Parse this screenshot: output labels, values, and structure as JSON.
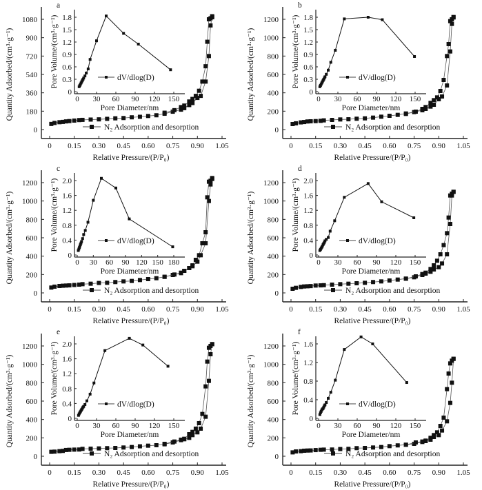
{
  "chart_data": [
    {
      "panel": "a",
      "type": "line",
      "main": {
        "xlabel": "Relative Pressure/(P/P₀)",
        "ylabel": "Quantity Adsorbed/(cm³·g⁻¹)",
        "legend": "N₂ Adsorption and desorption",
        "xticks": [
          0,
          0.15,
          0.3,
          0.45,
          0.6,
          0.75,
          0.9,
          1.05
        ],
        "yticks": [
          0,
          180,
          360,
          540,
          720,
          900,
          1080
        ],
        "adsorption": {
          "p": [
            0.01,
            0.03,
            0.06,
            0.08,
            0.1,
            0.12,
            0.15,
            0.18,
            0.2,
            0.25,
            0.3,
            0.35,
            0.4,
            0.45,
            0.5,
            0.55,
            0.6,
            0.65,
            0.7,
            0.75,
            0.8,
            0.82,
            0.85,
            0.87,
            0.9,
            0.92,
            0.95,
            0.97,
            0.98,
            0.99
          ],
          "q": [
            55,
            65,
            72,
            75,
            80,
            83,
            88,
            93,
            95,
            98,
            100,
            105,
            110,
            113,
            120,
            125,
            133,
            140,
            155,
            175,
            195,
            210,
            240,
            260,
            310,
            330,
            470,
            720,
            1020,
            1100
          ]
        },
        "desorption": {
          "p": [
            0.99,
            0.98,
            0.97,
            0.96,
            0.95,
            0.93,
            0.91,
            0.89,
            0.87,
            0.85,
            0.82,
            0.8,
            0.76,
            0.7
          ],
          "q": [
            1110,
            1090,
            1080,
            860,
            620,
            470,
            380,
            330,
            300,
            275,
            235,
            220,
            190,
            165
          ]
        }
      },
      "inset": {
        "xlabel": "Pore Diameter/nm",
        "ylabel": "Pore Volume/(cm³·g⁻¹)",
        "legend": "dV/dlog(D)",
        "xticks": [
          0,
          30,
          60,
          90,
          120,
          150
        ],
        "yticks": [
          0,
          0.3,
          0.6,
          0.9,
          1.2,
          1.5,
          1.8
        ],
        "d": [
          3,
          4,
          5,
          6,
          7,
          8,
          9,
          10,
          12,
          14,
          17,
          20,
          30,
          45,
          72,
          95,
          145
        ],
        "v": [
          0.12,
          0.15,
          0.18,
          0.21,
          0.24,
          0.27,
          0.3,
          0.33,
          0.38,
          0.45,
          0.55,
          0.78,
          1.23,
          1.83,
          1.41,
          1.15,
          0.53
        ]
      }
    },
    {
      "panel": "b",
      "type": "line",
      "main": {
        "xlabel": "Relative Pressure/(P/P₀)",
        "ylabel": "Quantity Adsorbed/(cm³·g⁻¹)",
        "legend": "N₂ Adsorption and desorption",
        "xticks": [
          0,
          0.15,
          0.3,
          0.45,
          0.6,
          0.75,
          0.9,
          1.05
        ],
        "yticks": [
          0,
          200,
          400,
          600,
          800,
          1000,
          1200
        ],
        "adsorption": {
          "p": [
            0.01,
            0.03,
            0.06,
            0.08,
            0.1,
            0.12,
            0.15,
            0.18,
            0.2,
            0.25,
            0.3,
            0.35,
            0.4,
            0.45,
            0.5,
            0.55,
            0.6,
            0.65,
            0.7,
            0.75,
            0.8,
            0.82,
            0.85,
            0.87,
            0.9,
            0.92,
            0.95,
            0.97,
            0.98,
            0.99
          ],
          "q": [
            60,
            68,
            78,
            82,
            88,
            90,
            92,
            95,
            100,
            105,
            110,
            112,
            118,
            122,
            130,
            140,
            150,
            160,
            175,
            190,
            210,
            225,
            250,
            270,
            330,
            360,
            480,
            850,
            1150,
            1220
          ]
        },
        "desorption": {
          "p": [
            0.99,
            0.98,
            0.97,
            0.96,
            0.95,
            0.93,
            0.91,
            0.89,
            0.87,
            0.85,
            0.82,
            0.8,
            0.76,
            0.7
          ],
          "q": [
            1225,
            1200,
            1180,
            930,
            800,
            540,
            420,
            350,
            320,
            290,
            245,
            225,
            195,
            170
          ]
        }
      },
      "inset": {
        "xlabel": "Pore Diameter/nm",
        "ylabel": "Pore Volume/(cm³·g⁻¹)",
        "legend": "dV/dlog(D)",
        "xticks": [
          0,
          30,
          60,
          90,
          120,
          150
        ],
        "yticks": [
          0,
          0.3,
          0.6,
          0.9,
          1.2,
          1.5,
          1.8
        ],
        "d": [
          2,
          3,
          4,
          5,
          6,
          7,
          8,
          9,
          10,
          12,
          15,
          19,
          26,
          40,
          77,
          99,
          149
        ],
        "v": [
          0.12,
          0.15,
          0.18,
          0.21,
          0.24,
          0.27,
          0.3,
          0.33,
          0.36,
          0.42,
          0.52,
          0.71,
          1.0,
          1.76,
          1.8,
          1.74,
          0.85
        ]
      }
    },
    {
      "panel": "c",
      "type": "line",
      "main": {
        "xlabel": "Relative Pressure/(P/P₀)",
        "ylabel": "Quantity Adsorbed/(cm³·g⁻¹)",
        "legend": "N₂ Adsorption and desorption",
        "xticks": [
          0,
          0.15,
          0.3,
          0.45,
          0.6,
          0.75,
          0.9,
          1.05
        ],
        "yticks": [
          0,
          200,
          400,
          600,
          800,
          1000,
          1200
        ],
        "adsorption": {
          "p": [
            0.01,
            0.03,
            0.06,
            0.08,
            0.1,
            0.12,
            0.15,
            0.18,
            0.2,
            0.25,
            0.3,
            0.35,
            0.4,
            0.45,
            0.5,
            0.55,
            0.6,
            0.65,
            0.7,
            0.75,
            0.8,
            0.82,
            0.85,
            0.87,
            0.9,
            0.92,
            0.95,
            0.97,
            0.98,
            0.99
          ],
          "q": [
            58,
            68,
            75,
            78,
            80,
            82,
            86,
            90,
            95,
            100,
            108,
            110,
            118,
            125,
            130,
            140,
            150,
            160,
            175,
            195,
            220,
            240,
            270,
            290,
            340,
            410,
            540,
            1000,
            1180,
            1240
          ]
        },
        "desorption": {
          "p": [
            0.99,
            0.98,
            0.97,
            0.96,
            0.95,
            0.93,
            0.91,
            0.89,
            0.87,
            0.85,
            0.82,
            0.8,
            0.76,
            0.7
          ],
          "q": [
            1250,
            1220,
            1210,
            1040,
            660,
            540,
            410,
            360,
            300,
            270,
            240,
            215,
            200,
            175
          ]
        }
      },
      "inset": {
        "xlabel": "Pore Diameter/nm",
        "ylabel": "Pore Volume/(cm³·g⁻¹)",
        "legend": "dV/dlog(D)",
        "xticks": [
          0,
          30,
          60,
          90,
          120,
          150,
          180
        ],
        "yticks": [
          0,
          0.4,
          0.8,
          1.2,
          1.6,
          2.0
        ],
        "d": [
          2,
          3,
          4,
          5,
          6,
          7,
          8,
          10,
          12,
          15,
          20,
          30,
          45,
          72,
          97,
          178
        ],
        "v": [
          0.12,
          0.16,
          0.2,
          0.24,
          0.28,
          0.32,
          0.36,
          0.44,
          0.55,
          0.66,
          0.88,
          1.47,
          2.06,
          1.8,
          0.97,
          0.22
        ]
      }
    },
    {
      "panel": "d",
      "type": "line",
      "main": {
        "xlabel": "Relative Pressure/(P/P₀)",
        "ylabel": "Quantity Adsorbed/(cm³·g⁻¹)",
        "legend": "N₂ Adsorption and desorption",
        "xticks": [
          0,
          0.15,
          0.3,
          0.45,
          0.6,
          0.75,
          0.9,
          1.05
        ],
        "yticks": [
          0,
          200,
          400,
          600,
          800,
          1000,
          1200
        ],
        "adsorption": {
          "p": [
            0.01,
            0.03,
            0.06,
            0.08,
            0.1,
            0.12,
            0.15,
            0.18,
            0.2,
            0.25,
            0.3,
            0.35,
            0.4,
            0.45,
            0.5,
            0.55,
            0.6,
            0.65,
            0.7,
            0.75,
            0.8,
            0.82,
            0.85,
            0.87,
            0.9,
            0.92,
            0.95,
            0.97,
            0.98,
            0.99
          ],
          "q": [
            45,
            55,
            65,
            70,
            72,
            74,
            80,
            82,
            84,
            90,
            95,
            100,
            105,
            110,
            118,
            125,
            135,
            145,
            155,
            170,
            195,
            210,
            230,
            255,
            280,
            320,
            420,
            750,
            1060,
            1100
          ]
        },
        "desorption": {
          "p": [
            0.99,
            0.98,
            0.97,
            0.96,
            0.95,
            0.93,
            0.91,
            0.89,
            0.87,
            0.85,
            0.82,
            0.8,
            0.76,
            0.7
          ],
          "q": [
            1100,
            1080,
            1060,
            820,
            650,
            520,
            420,
            350,
            300,
            260,
            220,
            205,
            180,
            155
          ]
        }
      },
      "inset": {
        "xlabel": "Pore Diameter/nm",
        "ylabel": "Pore Volume/(cm³·g⁻¹)",
        "legend": "dV/dlog(D)",
        "xticks": [
          0,
          30,
          60,
          90,
          120,
          150
        ],
        "yticks": [
          0,
          0.4,
          0.8,
          1.2,
          1.6,
          2.0
        ],
        "d": [
          2,
          3,
          4,
          5,
          6,
          7,
          8,
          9,
          10,
          12,
          15,
          18,
          25,
          40,
          77,
          98,
          148
        ],
        "v": [
          0.12,
          0.15,
          0.18,
          0.21,
          0.24,
          0.28,
          0.31,
          0.34,
          0.38,
          0.42,
          0.47,
          0.64,
          0.92,
          1.55,
          1.92,
          1.43,
          1.0
        ]
      }
    },
    {
      "panel": "e",
      "type": "line",
      "main": {
        "xlabel": "Relative Pressure/(P/P₀)",
        "ylabel": "Quantity Adsorbed/(cm³·g⁻¹)",
        "legend": "N₂ Adsorption and desorption",
        "xticks": [
          0,
          0.15,
          0.3,
          0.45,
          0.6,
          0.75,
          0.9,
          1.05
        ],
        "yticks": [
          0,
          200,
          400,
          600,
          800,
          1000,
          1200
        ],
        "adsorption": {
          "p": [
            0.01,
            0.03,
            0.06,
            0.08,
            0.1,
            0.12,
            0.15,
            0.18,
            0.2,
            0.25,
            0.3,
            0.35,
            0.4,
            0.45,
            0.5,
            0.55,
            0.6,
            0.65,
            0.7,
            0.75,
            0.8,
            0.82,
            0.85,
            0.87,
            0.9,
            0.92,
            0.95,
            0.97,
            0.98,
            0.99
          ],
          "q": [
            48,
            50,
            55,
            58,
            68,
            70,
            72,
            73,
            80,
            82,
            85,
            88,
            90,
            95,
            100,
            108,
            115,
            120,
            130,
            150,
            175,
            185,
            200,
            230,
            260,
            300,
            430,
            820,
            1110,
            1220
          ]
        },
        "desorption": {
          "p": [
            0.99,
            0.98,
            0.97,
            0.96,
            0.95,
            0.93,
            0.91,
            0.89,
            0.87,
            0.85,
            0.82,
            0.8,
            0.76,
            0.7
          ],
          "q": [
            1220,
            1200,
            1180,
            1030,
            760,
            460,
            360,
            300,
            265,
            240,
            190,
            180,
            160,
            135
          ]
        }
      },
      "inset": {
        "xlabel": "Pore Diameter/nm",
        "ylabel": "Pore Volume/(cm³·g⁻¹)",
        "legend": "dV/dlog(D)",
        "xticks": [
          0,
          30,
          60,
          90,
          120,
          150
        ],
        "yticks": [
          0,
          0.4,
          0.8,
          1.2,
          1.6,
          2.0
        ],
        "d": [
          2,
          3,
          4,
          5,
          6,
          7,
          8,
          9,
          10,
          12,
          15,
          20,
          26,
          43,
          81,
          102,
          141
        ],
        "v": [
          0.08,
          0.12,
          0.15,
          0.18,
          0.21,
          0.24,
          0.27,
          0.3,
          0.32,
          0.37,
          0.47,
          0.65,
          0.95,
          1.82,
          2.15,
          1.97,
          1.4
        ]
      }
    },
    {
      "panel": "f",
      "type": "line",
      "main": {
        "xlabel": "Relative Pressure/(P/P₀)",
        "ylabel": "Quantity Adsorbed/(cm³·g⁻¹)",
        "legend": "N₂ Adsorption and desorption",
        "xticks": [
          0,
          0.15,
          0.3,
          0.45,
          0.6,
          0.75,
          0.9,
          1.05
        ],
        "yticks": [
          0,
          200,
          400,
          600,
          800,
          1000,
          1200
        ],
        "adsorption": {
          "p": [
            0.01,
            0.03,
            0.06,
            0.08,
            0.1,
            0.12,
            0.15,
            0.18,
            0.2,
            0.25,
            0.3,
            0.35,
            0.4,
            0.45,
            0.5,
            0.55,
            0.6,
            0.65,
            0.7,
            0.75,
            0.8,
            0.82,
            0.85,
            0.87,
            0.9,
            0.92,
            0.95,
            0.97,
            0.98,
            0.99
          ],
          "q": [
            42,
            52,
            55,
            60,
            62,
            63,
            67,
            70,
            72,
            73,
            78,
            80,
            88,
            90,
            95,
            100,
            110,
            118,
            125,
            135,
            155,
            165,
            180,
            210,
            230,
            280,
            380,
            580,
            800,
            1060
          ]
        },
        "desorption": {
          "p": [
            0.99,
            0.98,
            0.97,
            0.96,
            0.95,
            0.93,
            0.91,
            0.89,
            0.87,
            0.85,
            0.82,
            0.8,
            0.76,
            0.7
          ],
          "q": [
            1060,
            1040,
            1010,
            900,
            730,
            420,
            330,
            260,
            230,
            200,
            170,
            160,
            150,
            125
          ]
        }
      },
      "inset": {
        "xlabel": "Pore Diameter/nm",
        "ylabel": "Pore Volume/(cm³·g⁻¹)",
        "legend": "dV/dlog(D)",
        "xticks": [
          0,
          30,
          60,
          90,
          120,
          150
        ],
        "yticks": [
          0,
          0.4,
          0.8,
          1.2,
          1.6
        ],
        "d": [
          2,
          3,
          4,
          5,
          6,
          7,
          8,
          9,
          10,
          12,
          15,
          19,
          26,
          40,
          66,
          84,
          137
        ],
        "v": [
          0.08,
          0.12,
          0.15,
          0.18,
          0.2,
          0.21,
          0.24,
          0.27,
          0.29,
          0.34,
          0.43,
          0.56,
          0.82,
          1.48,
          1.75,
          1.6,
          0.77
        ]
      }
    }
  ]
}
